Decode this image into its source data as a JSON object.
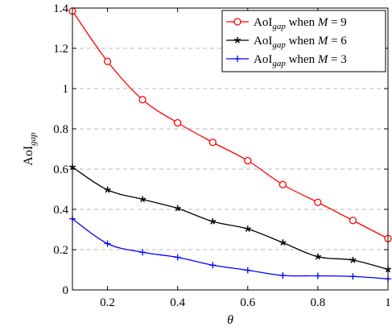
{
  "chart_data": {
    "type": "line",
    "xlabel": "θ",
    "ylabel": "AoI_gap",
    "xlim": [
      0.1,
      1.0
    ],
    "ylim": [
      0,
      1.4
    ],
    "xticks": [
      "0.2",
      "0.4",
      "0.6",
      "0.8",
      "1"
    ],
    "yticks": [
      "0",
      "0.2",
      "0.4",
      "0.6",
      "0.8",
      "1",
      "1.2",
      "1.4"
    ],
    "grid": "horizontal dashed",
    "legend_position": "top-right",
    "series": [
      {
        "name": "AoI_gap when M = 9",
        "label_main": "AoI",
        "label_sub": "gap",
        "label_when": " when ",
        "label_var": "M",
        "label_eq": " = 9",
        "color": "#ff0000",
        "marker": "circle",
        "x": [
          0.1,
          0.2,
          0.3,
          0.4,
          0.5,
          0.6,
          0.7,
          0.8,
          0.9,
          1.0
        ],
        "values": [
          1.385,
          1.135,
          0.945,
          0.83,
          0.733,
          0.642,
          0.523,
          0.435,
          0.345,
          0.255
        ]
      },
      {
        "name": "AoI_gap when M = 6",
        "label_main": "AoI",
        "label_sub": "gap",
        "label_when": " when ",
        "label_var": "M",
        "label_eq": " = 6",
        "color": "#000000",
        "marker": "star",
        "x": [
          0.1,
          0.2,
          0.3,
          0.4,
          0.5,
          0.6,
          0.7,
          0.8,
          0.9,
          1.0
        ],
        "values": [
          0.61,
          0.497,
          0.45,
          0.405,
          0.34,
          0.303,
          0.235,
          0.165,
          0.148,
          0.102
        ]
      },
      {
        "name": "AoI_gap when M = 3",
        "label_main": "AoI",
        "label_sub": "gap",
        "label_when": " when ",
        "label_var": "M",
        "label_eq": " = 3",
        "color": "#0000ff",
        "marker": "plus",
        "x": [
          0.1,
          0.2,
          0.3,
          0.4,
          0.5,
          0.6,
          0.7,
          0.8,
          0.9,
          1.0
        ],
        "values": [
          0.353,
          0.23,
          0.187,
          0.162,
          0.123,
          0.098,
          0.072,
          0.07,
          0.067,
          0.055
        ]
      }
    ]
  }
}
